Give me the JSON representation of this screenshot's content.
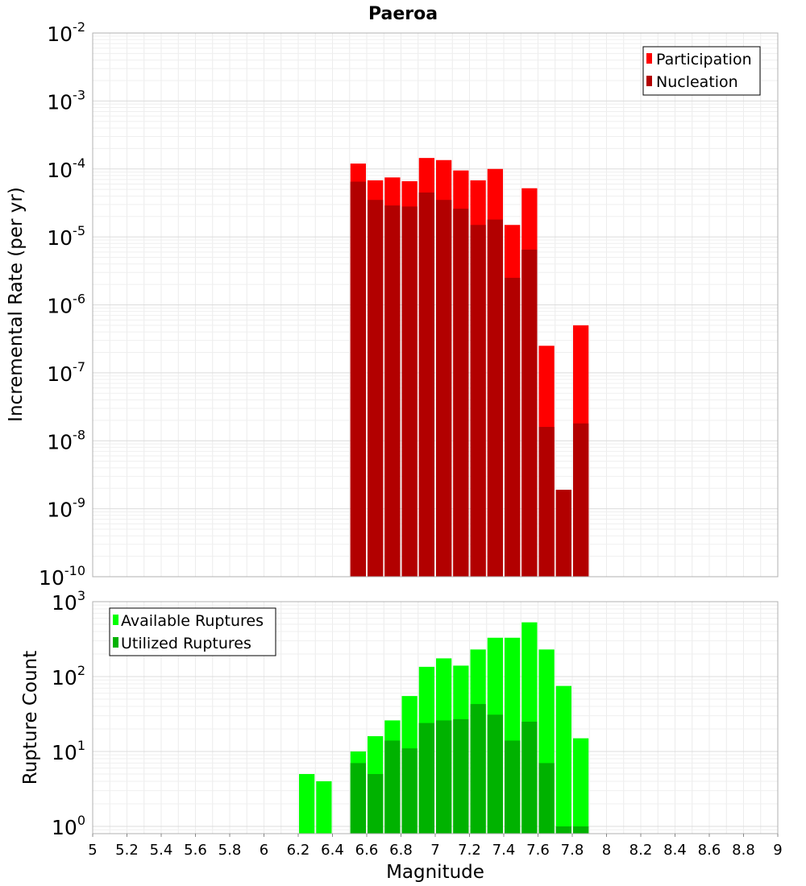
{
  "chart_data": [
    {
      "type": "bar",
      "title": "Paeroa",
      "xlabel": "",
      "ylabel": "Incremental Rate (per yr)",
      "y_scale": "log",
      "ylim": [
        1e-10,
        0.01
      ],
      "xlim": [
        5,
        9
      ],
      "y_tick_exponents": [
        "-2",
        "-3",
        "-4",
        "-5",
        "-6",
        "-7",
        "-8",
        "-9",
        "-10"
      ],
      "bar_width": 0.1,
      "legend_position": "top-right",
      "x": [
        6.55,
        6.65,
        6.75,
        6.85,
        6.95,
        7.05,
        7.15,
        7.25,
        7.35,
        7.45,
        7.55,
        7.65,
        7.75,
        7.85
      ],
      "series": [
        {
          "name": "Participation",
          "color": "#ff0000",
          "values": [
            0.00012,
            6.8e-05,
            7.5e-05,
            6.6e-05,
            0.000145,
            0.000135,
            9.5e-05,
            6.8e-05,
            0.0001,
            1.5e-05,
            5.2e-05,
            2.5e-07,
            1.9e-09,
            5e-07
          ]
        },
        {
          "name": "Nucleation",
          "color": "#b20000",
          "values": [
            6.5e-05,
            3.5e-05,
            2.9e-05,
            2.8e-05,
            4.5e-05,
            3.5e-05,
            2.6e-05,
            1.5e-05,
            1.8e-05,
            2.5e-06,
            6.5e-06,
            1.6e-08,
            1.9e-09,
            1.8e-08
          ]
        }
      ]
    },
    {
      "type": "bar",
      "title": "",
      "xlabel": "Magnitude",
      "ylabel": "Rupture Count",
      "y_scale": "log",
      "ylim": [
        0.8,
        1000
      ],
      "xlim": [
        5,
        9
      ],
      "y_tick_exponents": [
        "3",
        "2",
        "1",
        "0"
      ],
      "x_ticks": [
        "5",
        "5.2",
        "5.4",
        "5.6",
        "5.8",
        "6",
        "6.2",
        "6.4",
        "6.6",
        "6.8",
        "7",
        "7.2",
        "7.4",
        "7.6",
        "7.8",
        "8",
        "8.2",
        "8.4",
        "8.6",
        "8.8",
        "9"
      ],
      "bar_width": 0.1,
      "legend_position": "top-left",
      "x": [
        6.25,
        6.35,
        6.55,
        6.65,
        6.75,
        6.85,
        6.95,
        7.05,
        7.15,
        7.25,
        7.35,
        7.45,
        7.55,
        7.65,
        7.75,
        7.85
      ],
      "series": [
        {
          "name": "Available Ruptures",
          "color": "#00ff00",
          "values": [
            5,
            4,
            10,
            16,
            26,
            55,
            135,
            175,
            140,
            230,
            330,
            330,
            530,
            230,
            75,
            15
          ]
        },
        {
          "name": "Utilized Ruptures",
          "color": "#00b200",
          "values": [
            0,
            0,
            7,
            5,
            14,
            11,
            24,
            26,
            27,
            43,
            31,
            14,
            25,
            7,
            1,
            1
          ]
        }
      ]
    }
  ]
}
